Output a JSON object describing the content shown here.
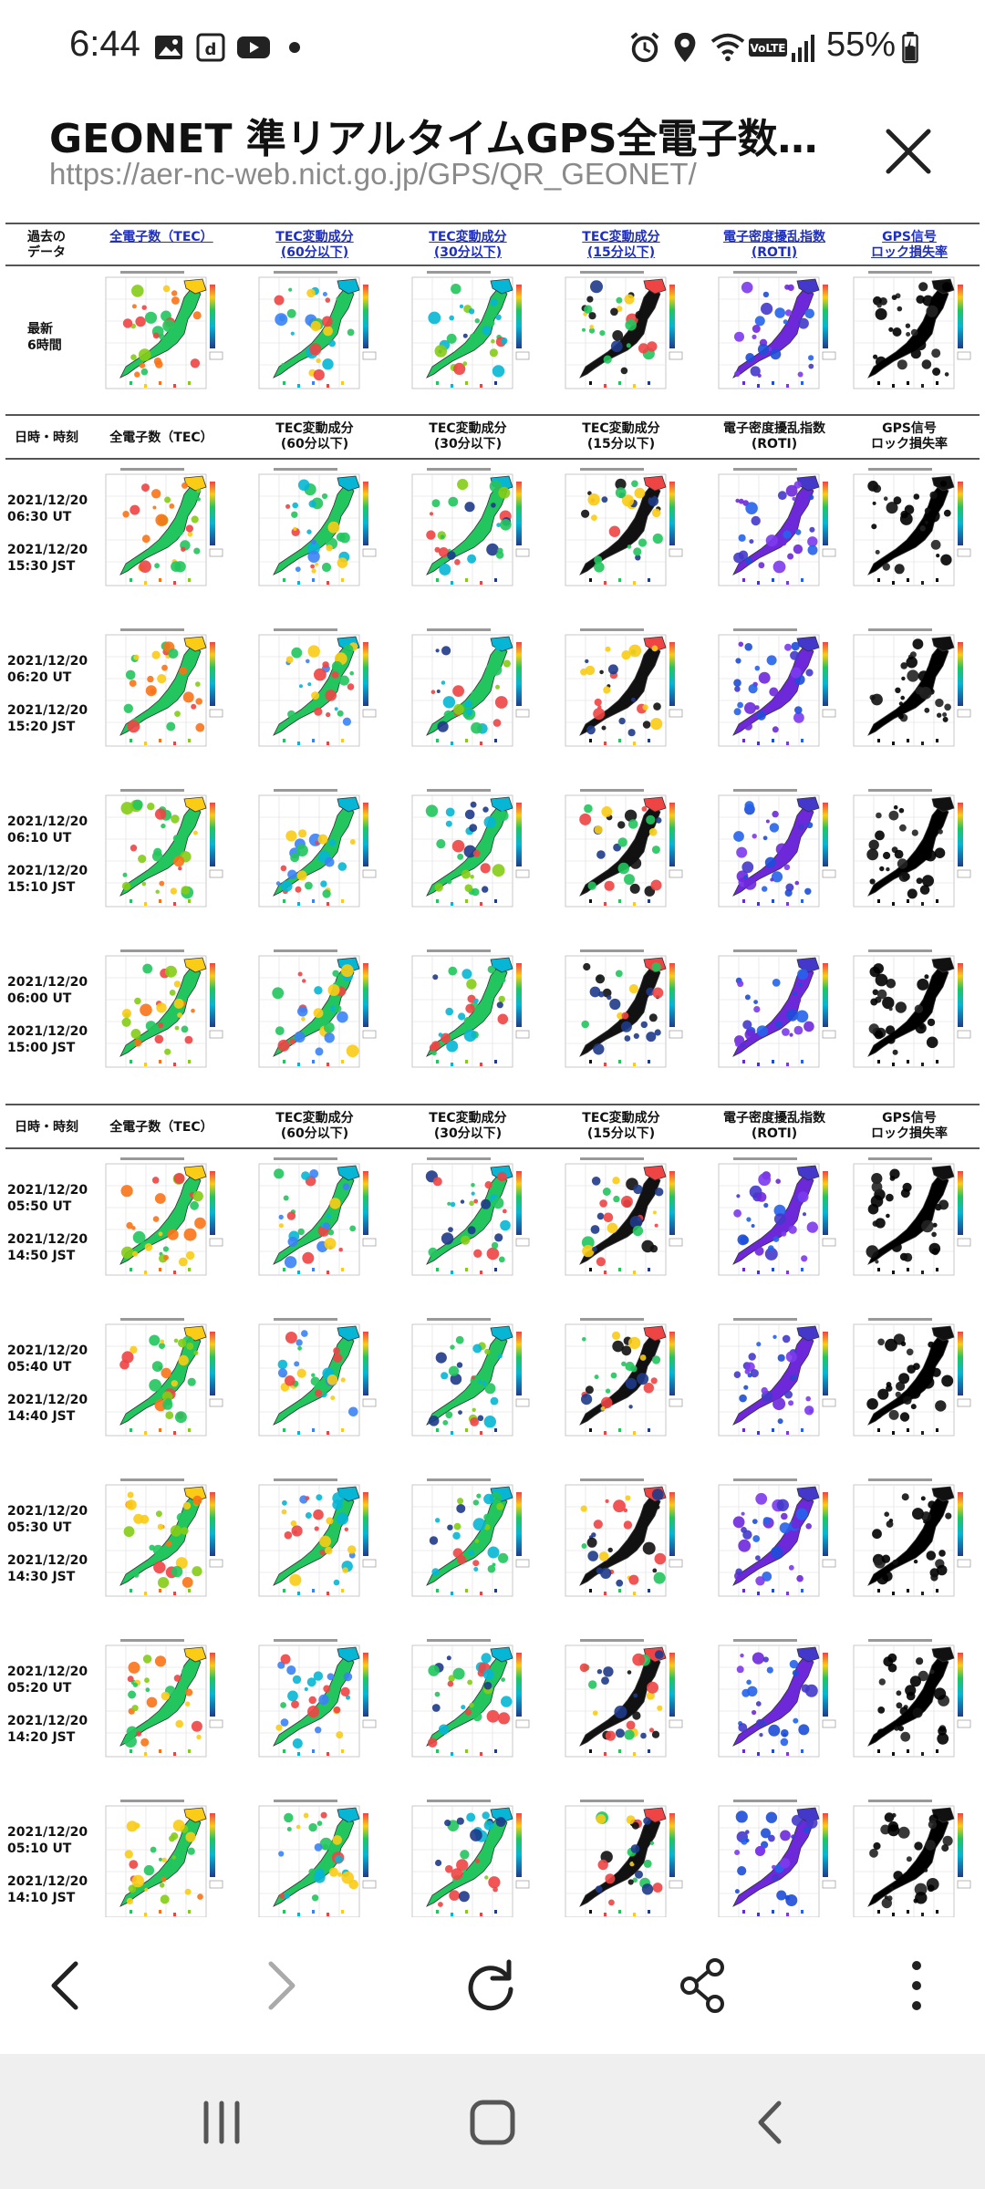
{
  "status": {
    "time": "6:44",
    "battery": "55%",
    "network_badge": "VoLTE",
    "icons": [
      "gallery-icon",
      "d-app-icon",
      "youtube-icon",
      "dot-icon",
      "alarm-icon",
      "location-icon",
      "wifi-icon",
      "volte-icon",
      "signal-icon",
      "battery-charging-icon"
    ]
  },
  "titlebar": {
    "title": "GEONET 準リアルタイムGPS全電子数マ...",
    "url": "https://aer-nc-web.nict.go.jp/GPS/QR_GEONET/",
    "close_icon": "close-icon"
  },
  "top_header": {
    "first_col": "過去の\nデータ",
    "columns": [
      "全電子数（TEC）",
      "TEC変動成分\n(60分以下)",
      "TEC変動成分\n(30分以下)",
      "TEC変動成分\n(15分以下)",
      "電子密度擾乱指数\n(ROTI)",
      "GPS信号\nロック損失率"
    ]
  },
  "latest_row": {
    "label": "最新\n6時間"
  },
  "section_header": {
    "first_col": "日時・時刻",
    "columns": [
      "全電子数（TEC）",
      "TEC変動成分\n(60分以下)",
      "TEC変動成分\n(30分以下)",
      "TEC変動成分\n(15分以下)",
      "電子密度擾乱指数\n(ROTI)",
      "GPS信号\nロック損失率"
    ]
  },
  "rows": [
    {
      "ut": "2021/12/20\n06:30 UT",
      "jst": "2021/12/20\n15:30 JST"
    },
    {
      "ut": "2021/12/20\n06:20 UT",
      "jst": "2021/12/20\n15:20 JST"
    },
    {
      "ut": "2021/12/20\n06:10 UT",
      "jst": "2021/12/20\n15:10 JST"
    },
    {
      "ut": "2021/12/20\n06:00 UT",
      "jst": "2021/12/20\n15:00 JST"
    },
    {
      "ut": "2021/12/20\n05:50 UT",
      "jst": "2021/12/20\n14:50 JST"
    },
    {
      "ut": "2021/12/20\n05:40 UT",
      "jst": "2021/12/20\n14:40 JST"
    },
    {
      "ut": "2021/12/20\n05:30 UT",
      "jst": "2021/12/20\n14:30 JST"
    },
    {
      "ut": "2021/12/20\n05:20 UT",
      "jst": "2021/12/20\n14:20 JST"
    },
    {
      "ut": "2021/12/20\n05:10 UT",
      "jst": "2021/12/20\n14:10 JST"
    }
  ],
  "map_palettes": {
    "tec": [
      "#22c55e",
      "#facc15",
      "#f97316",
      "#ef4444",
      "#84cc16"
    ],
    "tec60": [
      "#22c55e",
      "#06b6d4",
      "#3b82f6",
      "#ef4444",
      "#facc15"
    ],
    "tec30": [
      "#22c55e",
      "#06b6d4",
      "#84cc16",
      "#ef4444",
      "#1e3a8a"
    ],
    "tec15": [
      "#111111",
      "#ef4444",
      "#22c55e",
      "#facc15",
      "#1e3a8a"
    ],
    "roti": [
      "#6d28d9",
      "#4338ca",
      "#1d4ed8",
      "#7c3aed",
      "#2563eb"
    ],
    "lol": [
      "#000000",
      "#111111",
      "#000000",
      "#222222",
      "#000000"
    ]
  },
  "toolbar": {
    "icons": [
      "back-icon",
      "forward-icon",
      "reload-icon",
      "share-icon",
      "more-icon"
    ]
  },
  "navbar": {
    "icons": [
      "recents-icon",
      "home-icon",
      "nav-back-icon"
    ]
  }
}
